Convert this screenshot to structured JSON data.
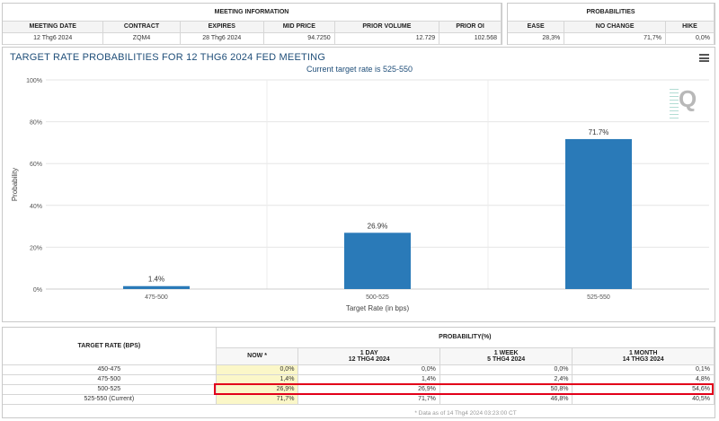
{
  "meeting_info": {
    "title": "MEETING INFORMATION",
    "headers": [
      "MEETING DATE",
      "CONTRACT",
      "EXPIRES",
      "MID PRICE",
      "PRIOR VOLUME",
      "PRIOR OI"
    ],
    "values": [
      "12 Thg6 2024",
      "ZQM4",
      "28 Thg6 2024",
      "94.7250",
      "12.729",
      "102.568"
    ]
  },
  "probabilities_panel": {
    "title": "PROBABILITIES",
    "headers": [
      "EASE",
      "NO CHANGE",
      "HIKE"
    ],
    "values": [
      "28,3%",
      "71,7%",
      "0,0%"
    ]
  },
  "chart": {
    "title": "TARGET RATE PROBABILITIES FOR 12 THG6 2024 FED MEETING",
    "subtitle": "Current target rate is 525-550",
    "menu_icon": "hamburger-menu-icon",
    "logo_icon": "quikstrike-q-logo",
    "bar_color": "#2a7ab8"
  },
  "chart_data": {
    "type": "bar",
    "categories": [
      "475-500",
      "500-525",
      "525-550"
    ],
    "values": [
      1.4,
      26.9,
      71.7
    ],
    "data_labels": [
      "1.4%",
      "26.9%",
      "71.7%"
    ],
    "ylim": [
      0,
      100
    ],
    "yticks": [
      "0%",
      "20%",
      "40%",
      "60%",
      "80%",
      "100%"
    ],
    "xlabel": "Target Rate (in bps)",
    "ylabel": "Probability",
    "grid": true
  },
  "rate_table": {
    "left_header": "TARGET RATE (BPS)",
    "group_header": "PROBABILITY(%)",
    "columns": [
      {
        "line1": "NOW *",
        "line2": ""
      },
      {
        "line1": "1 DAY",
        "line2": "12 THG4 2024"
      },
      {
        "line1": "1 WEEK",
        "line2": "5 THG4 2024"
      },
      {
        "line1": "1 MONTH",
        "line2": "14 THG3 2024"
      }
    ],
    "rows": [
      {
        "rate": "450-475",
        "vals": [
          "0,0%",
          "0,0%",
          "0,0%",
          "0,1%"
        ]
      },
      {
        "rate": "475-500",
        "vals": [
          "1,4%",
          "1,4%",
          "2,4%",
          "4,8%"
        ]
      },
      {
        "rate": "500-525",
        "vals": [
          "26,9%",
          "26,9%",
          "50,8%",
          "54,6%"
        ]
      },
      {
        "rate": "525-550 (Current)",
        "vals": [
          "71,7%",
          "71,7%",
          "46,8%",
          "40,5%"
        ]
      }
    ],
    "footnote": "* Data as of 14 Thg4 2024 03:23:00 CT"
  }
}
